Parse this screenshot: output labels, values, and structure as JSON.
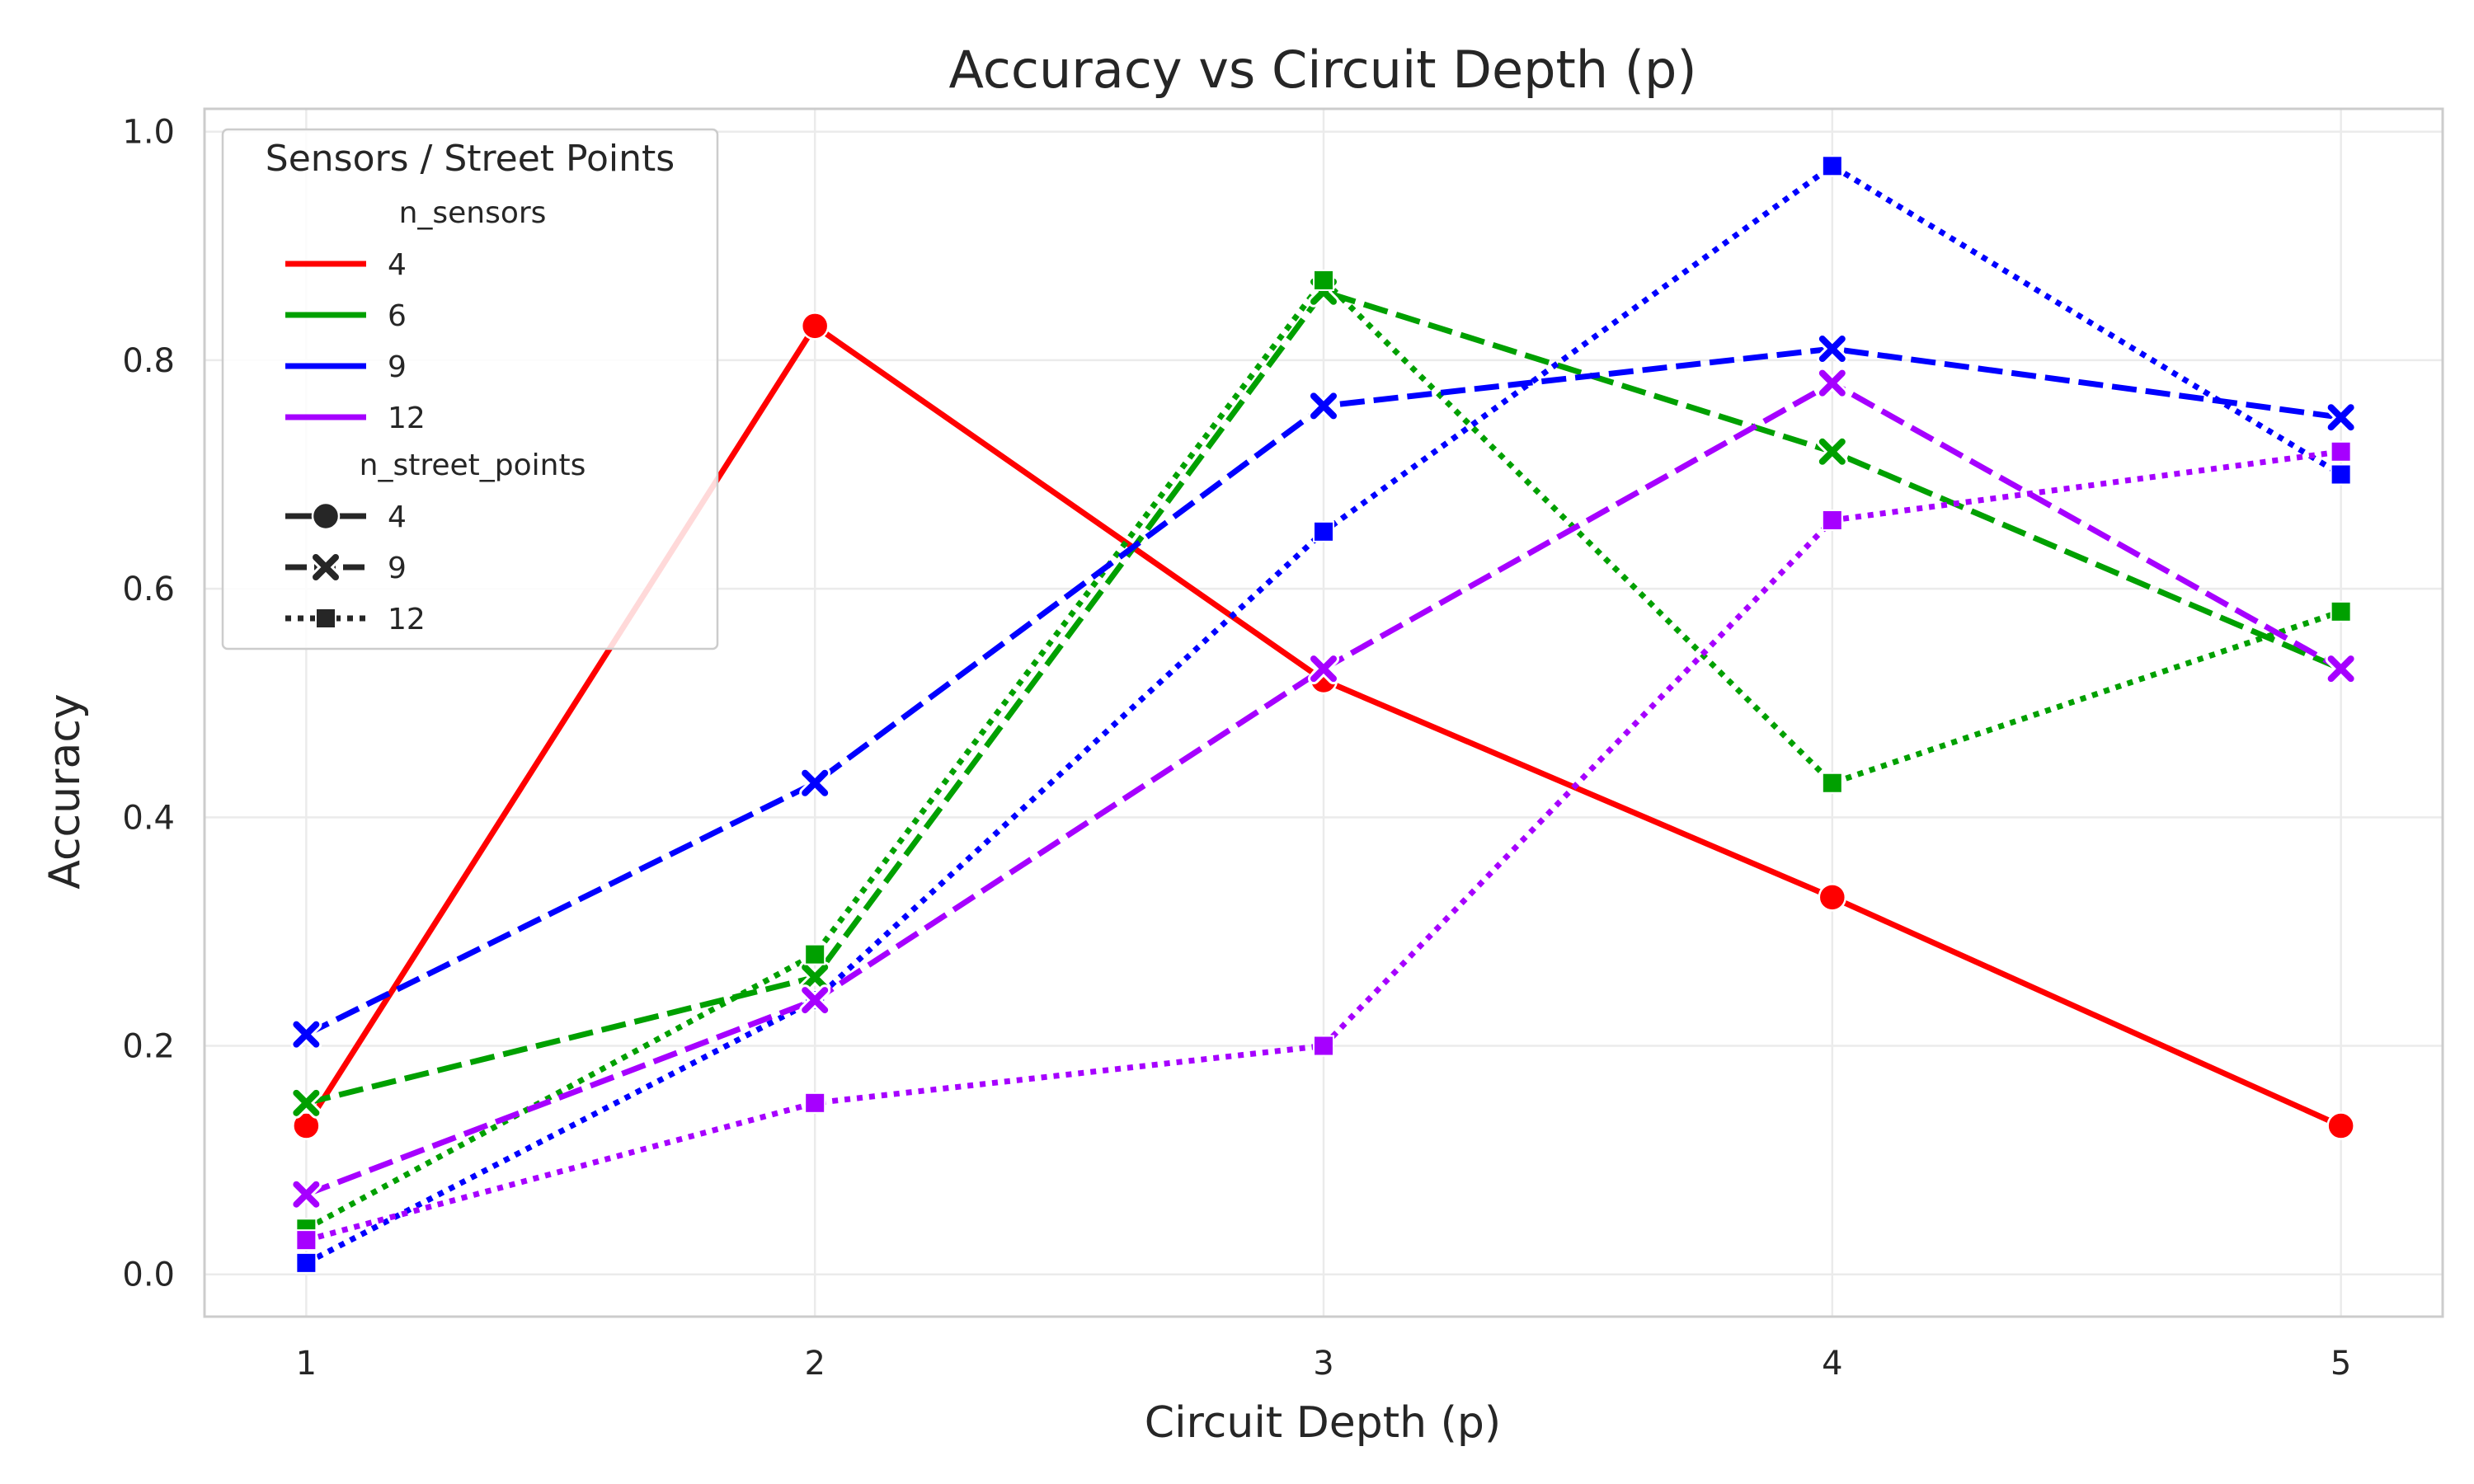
{
  "chart_data": {
    "type": "line",
    "title": "Accuracy vs Circuit Depth (p)",
    "xlabel": "Circuit Depth (p)",
    "ylabel": "Accuracy",
    "x": [
      1,
      2,
      3,
      4,
      5
    ],
    "xticks": [
      "1",
      "2",
      "3",
      "4",
      "5"
    ],
    "yticks": [
      "0.0",
      "0.2",
      "0.4",
      "0.6",
      "0.8",
      "1.0"
    ],
    "xlim": [
      0.8,
      5.2
    ],
    "ylim": [
      -0.037,
      1.02
    ],
    "grid": true,
    "legend": {
      "title": "Sensors / Street Points",
      "placement": "top-left",
      "hue_title": "n_sensors",
      "hue_entries": [
        {
          "label": "4",
          "color": "#ff0000"
        },
        {
          "label": "6",
          "color": "#00a000"
        },
        {
          "label": "9",
          "color": "#0000ff"
        },
        {
          "label": "12",
          "color": "#a600ff"
        }
      ],
      "style_title": "n_street_points",
      "style_entries": [
        {
          "label": "4",
          "dash": "solid",
          "marker": "circle"
        },
        {
          "label": "9",
          "dash": "dashed",
          "marker": "x"
        },
        {
          "label": "12",
          "dash": "dotted",
          "marker": "square"
        }
      ]
    },
    "series": [
      {
        "n_sensors": "4",
        "n_street_points": "4",
        "color": "#ff0000",
        "dash": "solid",
        "marker": "circle",
        "values": [
          0.13,
          0.83,
          0.52,
          0.33,
          0.13
        ]
      },
      {
        "n_sensors": "6",
        "n_street_points": "9",
        "color": "#00a000",
        "dash": "dashed",
        "marker": "x",
        "values": [
          0.15,
          0.26,
          0.86,
          0.72,
          0.53
        ]
      },
      {
        "n_sensors": "6",
        "n_street_points": "12",
        "color": "#00a000",
        "dash": "dotted",
        "marker": "square",
        "values": [
          0.04,
          0.28,
          0.87,
          0.43,
          0.58
        ]
      },
      {
        "n_sensors": "9",
        "n_street_points": "9",
        "color": "#0000ff",
        "dash": "dashed",
        "marker": "x",
        "values": [
          0.21,
          0.43,
          0.76,
          0.81,
          0.75
        ]
      },
      {
        "n_sensors": "9",
        "n_street_points": "12",
        "color": "#0000ff",
        "dash": "dotted",
        "marker": "square",
        "values": [
          0.01,
          0.24,
          0.65,
          0.97,
          0.7
        ]
      },
      {
        "n_sensors": "12",
        "n_street_points": "9",
        "color": "#a600ff",
        "dash": "dashed",
        "marker": "x",
        "values": [
          0.07,
          0.24,
          0.53,
          0.78,
          0.53
        ]
      },
      {
        "n_sensors": "12",
        "n_street_points": "12",
        "color": "#a600ff",
        "dash": "dotted",
        "marker": "square",
        "values": [
          0.03,
          0.15,
          0.2,
          0.66,
          0.72
        ]
      }
    ]
  }
}
